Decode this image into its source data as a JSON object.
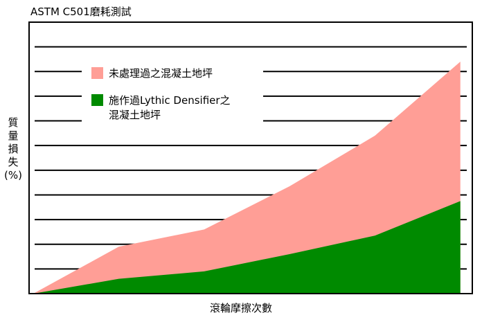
{
  "chart_data": {
    "type": "area",
    "title": "ASTM C501磨耗測試",
    "xlabel": "滾輪摩擦次數",
    "ylabel_chars": [
      "質",
      "量",
      "損",
      "失",
      "(%)"
    ],
    "x": [
      0,
      1,
      2,
      3,
      4,
      5
    ],
    "xlim": [
      -0.05,
      5.14
    ],
    "ylim": [
      0,
      11
    ],
    "grid": true,
    "legend_position": "top-left",
    "series": [
      {
        "name": "未處理過之混凝土地坪",
        "color": "#ff9e96",
        "values": [
          0,
          1.9,
          2.6,
          4.35,
          6.4,
          9.4
        ]
      },
      {
        "name_lines": [
          "施作過Lythic Densifier之",
          "混凝土地坪"
        ],
        "color": "#008a00",
        "values": [
          0,
          0.6,
          0.9,
          1.6,
          2.35,
          3.75
        ]
      }
    ]
  }
}
